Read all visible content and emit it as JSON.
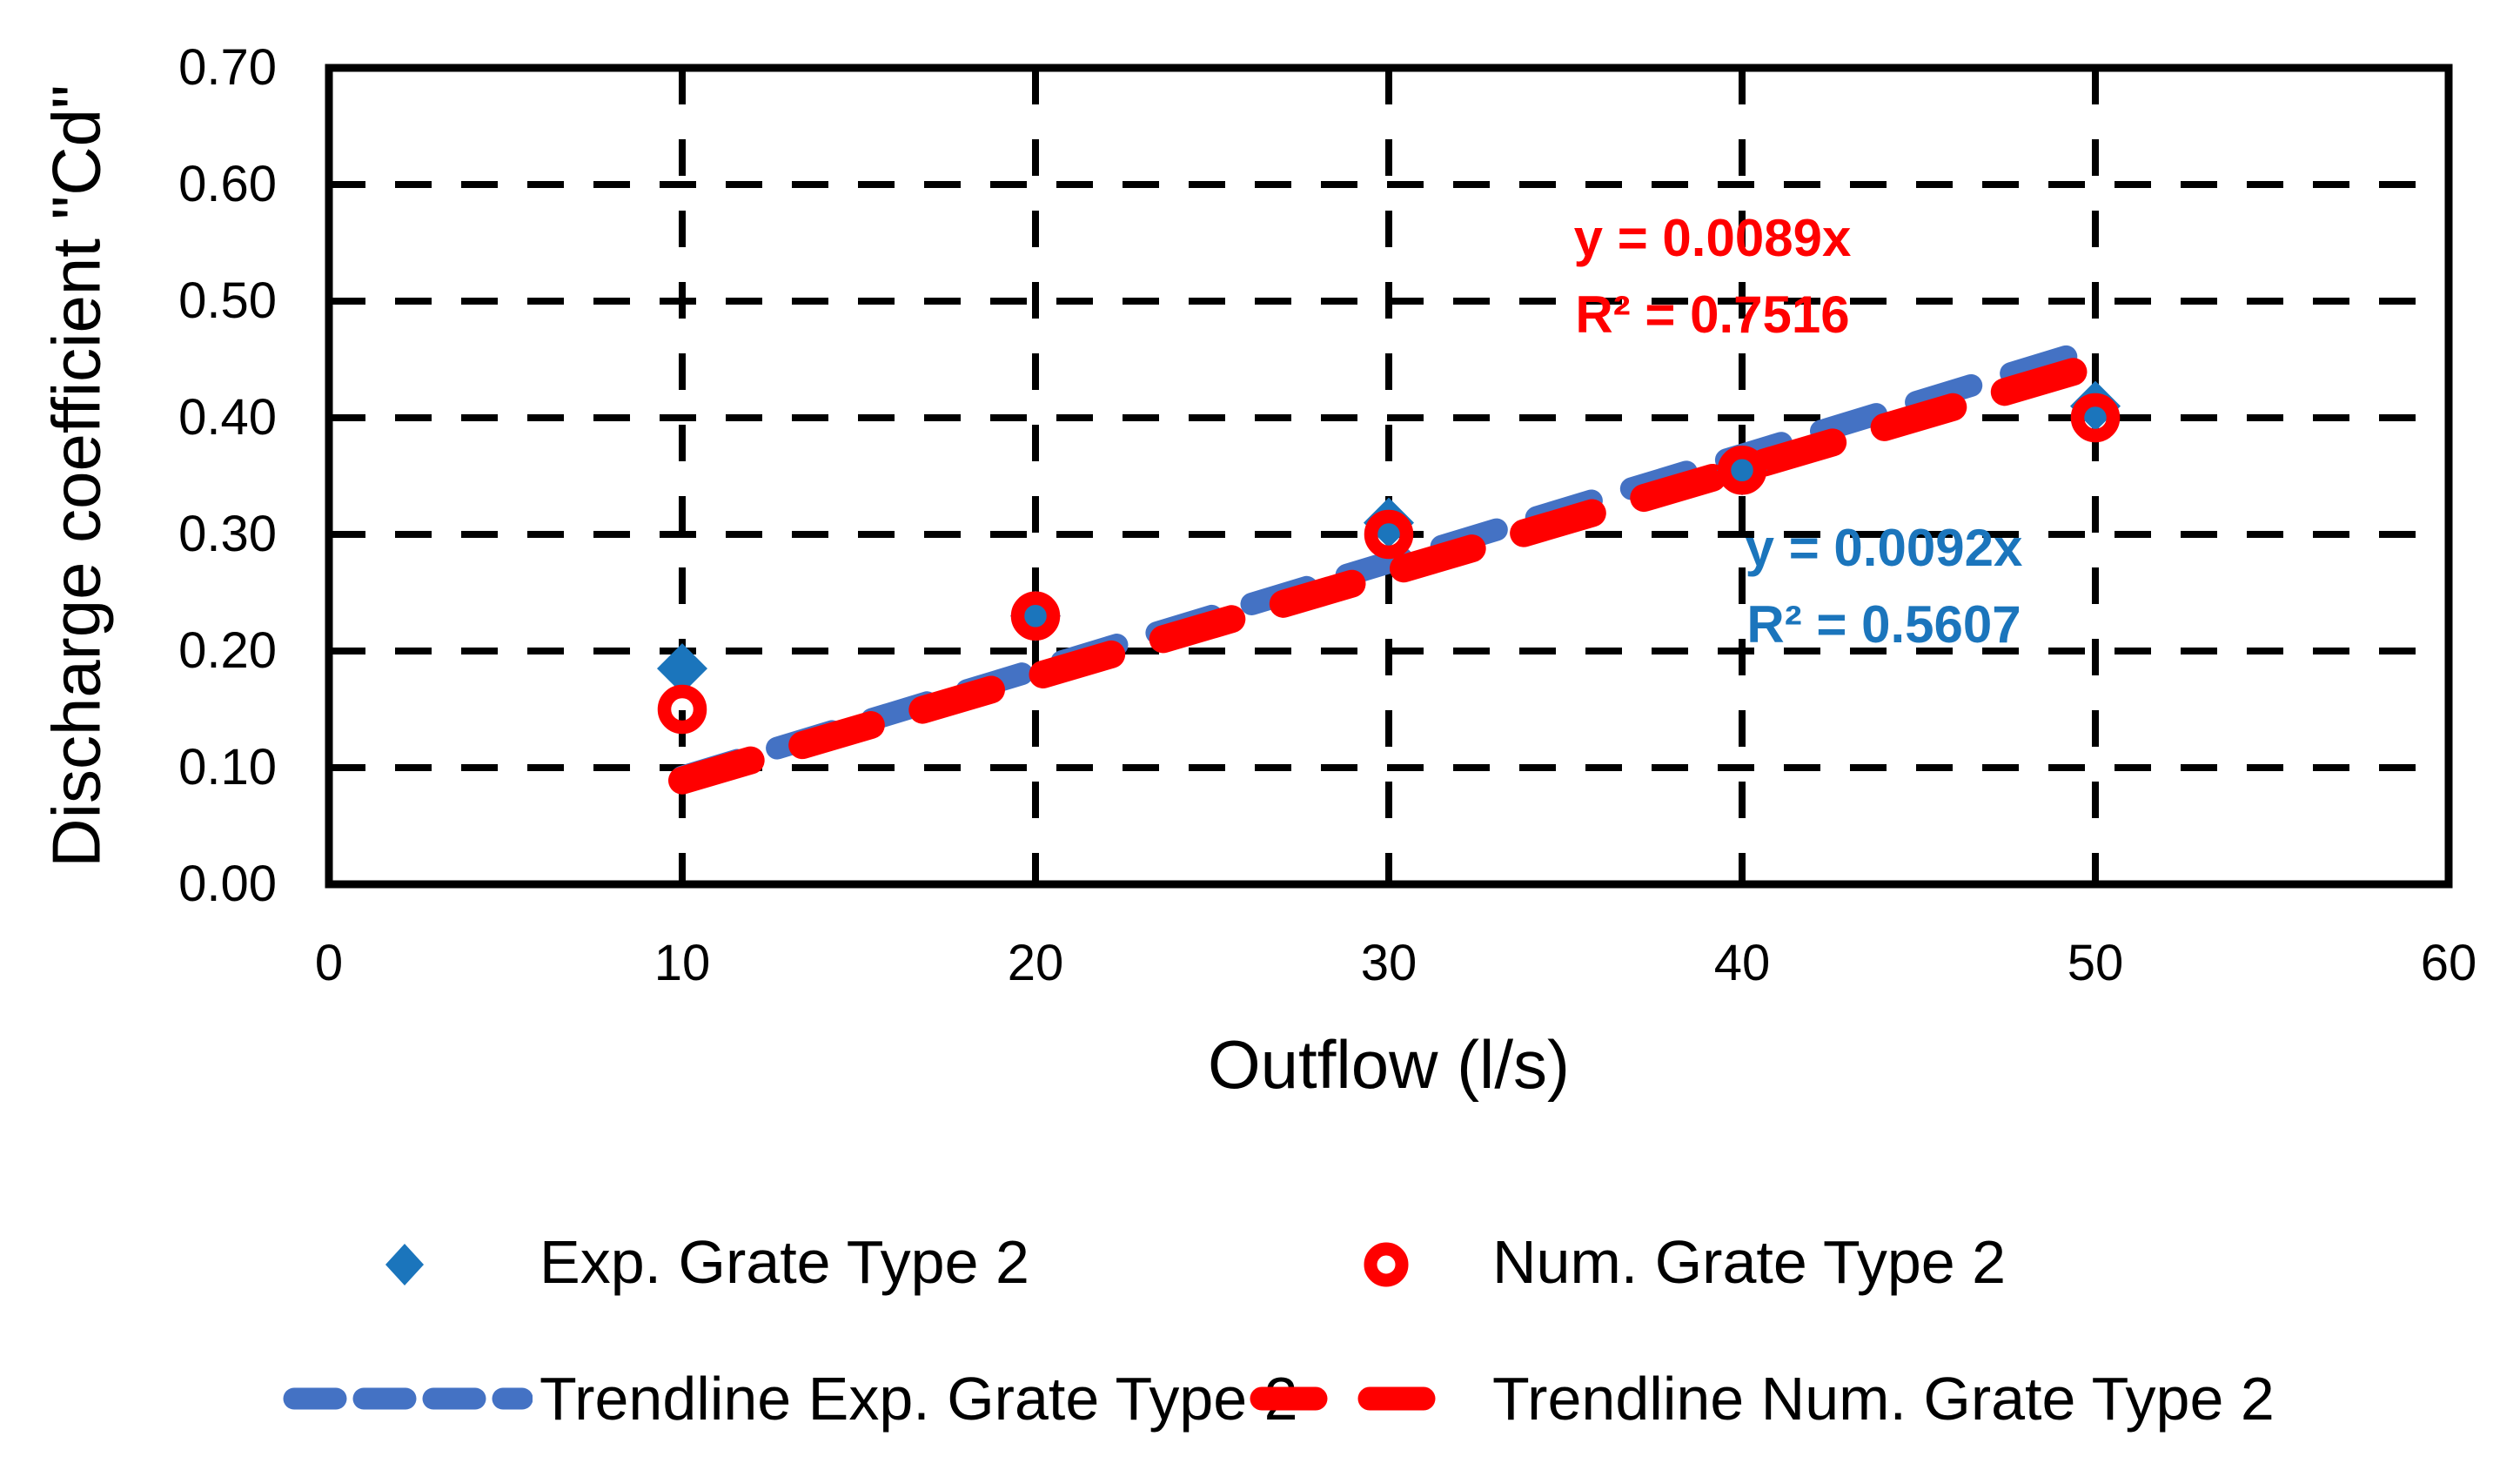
{
  "chart_data": {
    "type": "scatter",
    "title": "",
    "xlabel": "Outflow (l/s)",
    "ylabel": "Discharge coefficient \"Cd\"",
    "xlim": [
      0,
      60
    ],
    "ylim": [
      0.0,
      0.7
    ],
    "x_ticks": [
      "0",
      "10",
      "20",
      "30",
      "40",
      "50",
      "60"
    ],
    "x_tick_values": [
      0,
      10,
      20,
      30,
      40,
      50,
      60
    ],
    "y_ticks": [
      "0.00",
      "0.10",
      "0.20",
      "0.30",
      "0.40",
      "0.50",
      "0.60",
      "0.70"
    ],
    "y_tick_values": [
      0,
      0.1,
      0.2,
      0.3,
      0.4,
      0.5,
      0.6,
      0.7
    ],
    "grid": "dashed black gridlines both directions, solid black plot border",
    "legend_position": "bottom",
    "series": [
      {
        "name": "Exp. Grate Type 2",
        "marker": "diamond",
        "color": "#1B75BC",
        "x": [
          10,
          20,
          30,
          40,
          50
        ],
        "y": [
          0.185,
          0.23,
          0.31,
          0.355,
          0.41
        ]
      },
      {
        "name": "Num. Grate Type 2",
        "marker": "open-circle",
        "color": "#FF0000",
        "x": [
          10,
          20,
          30,
          40,
          50
        ],
        "y": [
          0.15,
          0.23,
          0.3,
          0.355,
          0.4
        ]
      }
    ],
    "trendlines": [
      {
        "name": "Trendline Exp. Grate Type 2",
        "color": "#4472C4",
        "slope": 0.0092,
        "x_start": 10,
        "x_end": 50,
        "equation": "y = 0.0092x",
        "r_squared": "R² = 0.5607"
      },
      {
        "name": "Trendline Num. Grate Type 2",
        "color": "#FF0000",
        "slope": 0.0089,
        "x_start": 10,
        "x_end": 50,
        "equation": "y = 0.0089x",
        "r_squared": "R² = 0.7516"
      }
    ]
  }
}
